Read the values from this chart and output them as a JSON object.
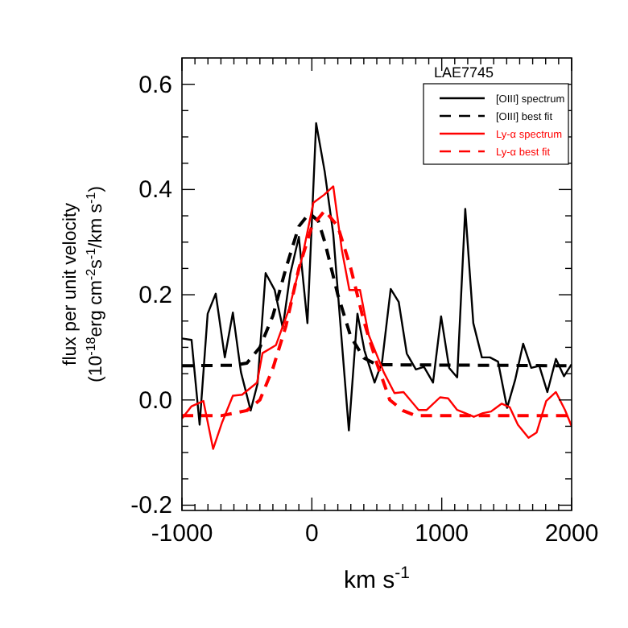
{
  "chart_data": {
    "type": "line",
    "title": "LAE7745",
    "xlabel": "km s$^{-1}$",
    "ylabel": "flux per unit velocity\n(10$^{-18}$erg cm$^{-2}$s$^{-1}$/km s$^{-1}$)",
    "xlim": [
      -1000,
      2000
    ],
    "ylim": [
      -0.21,
      0.65
    ],
    "xticks": [
      -1000,
      {
        "value": -900,
        "label": null
      },
      {
        "value": -800,
        "label": null
      },
      {
        "value": -700,
        "label": null
      },
      {
        "value": -600,
        "label": null
      },
      {
        "value": -500,
        "label": null
      },
      {
        "value": -400,
        "label": null
      },
      {
        "value": -300,
        "label": null
      },
      {
        "value": -200,
        "label": null
      },
      {
        "value": -100,
        "label": null
      },
      0,
      {
        "value": 100,
        "label": null
      },
      {
        "value": 200,
        "label": null
      },
      {
        "value": 300,
        "label": null
      },
      {
        "value": 400,
        "label": null
      },
      {
        "value": 500,
        "label": null
      },
      {
        "value": 600,
        "label": null
      },
      {
        "value": 700,
        "label": null
      },
      {
        "value": 800,
        "label": null
      },
      {
        "value": 900,
        "label": null
      },
      1000,
      {
        "value": 1100,
        "label": null
      },
      {
        "value": 1200,
        "label": null
      },
      {
        "value": 1300,
        "label": null
      },
      {
        "value": 1400,
        "label": null
      },
      {
        "value": 1500,
        "label": null
      },
      {
        "value": 1600,
        "label": null
      },
      {
        "value": 1700,
        "label": null
      },
      {
        "value": 1800,
        "label": null
      },
      {
        "value": 1900,
        "label": null
      },
      2000
    ],
    "yticks": [
      {
        "value": -0.2,
        "label": "-0.2"
      },
      {
        "value": -0.15,
        "label": null
      },
      {
        "value": -0.1,
        "label": null
      },
      {
        "value": -0.05,
        "label": null
      },
      {
        "value": 0,
        "label": "0.0"
      },
      {
        "value": 0.05,
        "label": null
      },
      {
        "value": 0.1,
        "label": null
      },
      {
        "value": 0.15,
        "label": null
      },
      {
        "value": 0.2,
        "label": "0.2"
      },
      {
        "value": 0.25,
        "label": null
      },
      {
        "value": 0.3,
        "label": null
      },
      {
        "value": 0.35,
        "label": null
      },
      {
        "value": 0.4,
        "label": "0.4"
      },
      {
        "value": 0.45,
        "label": null
      },
      {
        "value": 0.5,
        "label": null
      },
      {
        "value": 0.55,
        "label": null
      },
      {
        "value": 0.6,
        "label": "0.6"
      }
    ],
    "legend": "top right",
    "grid": false,
    "series": [
      {
        "name": "[OIII] spectrum",
        "color": "#000000",
        "line_style": "solid",
        "x": [
          -1000,
          -926,
          -864,
          -802,
          -740,
          -670,
          -608,
          -546,
          -471,
          -418,
          -356,
          -286,
          -224,
          -166,
          -100,
          -34,
          33,
          99,
          165,
          223,
          285,
          351,
          405,
          483,
          541,
          607,
          669,
          731,
          801,
          863,
          933,
          995,
          1057,
          1119,
          1181,
          1243,
          1309,
          1371,
          1433,
          1503,
          1565,
          1627,
          1689,
          1751,
          1813,
          1879,
          1941,
          2000
        ],
        "values": [
          0.117,
          0.114,
          -0.047,
          0.164,
          0.202,
          0.081,
          0.166,
          0.053,
          -0.02,
          0.031,
          0.241,
          0.209,
          0.137,
          0.24,
          0.31,
          0.146,
          0.526,
          0.434,
          0.315,
          0.134,
          -0.058,
          0.164,
          0.094,
          0.033,
          0.073,
          0.211,
          0.186,
          0.088,
          0.058,
          0.063,
          0.033,
          0.159,
          0.061,
          0.043,
          0.363,
          0.146,
          0.081,
          0.081,
          0.073,
          -0.015,
          0.038,
          0.107,
          0.061,
          0.065,
          0.015,
          0.078,
          0.045,
          0.068
        ]
      },
      {
        "name": "[OIII] best fit",
        "color": "#000000",
        "line_style": "dashed",
        "x": [
          -1000,
          -600,
          -500,
          -400,
          -300,
          -200,
          -100,
          -20,
          50,
          100,
          200,
          300,
          400,
          500,
          2000
        ],
        "values": [
          0.065,
          0.066,
          0.07,
          0.1,
          0.16,
          0.25,
          0.33,
          0.355,
          0.34,
          0.3,
          0.2,
          0.12,
          0.08,
          0.067,
          0.065
        ]
      },
      {
        "name": "Ly-α spectrum",
        "color": "#ff0000",
        "line_style": "solid",
        "x": [
          -1000,
          -926,
          -835,
          -760,
          -690,
          -608,
          -537,
          -422,
          -380,
          -277,
          -174,
          -71,
          12,
          95,
          165,
          231,
          289,
          371,
          437,
          553,
          636,
          706,
          822,
          884,
          987,
          1049,
          1119,
          1181,
          1247,
          1317,
          1379,
          1462,
          1524,
          1586,
          1668,
          1730,
          1804,
          1879,
          1949,
          2000
        ],
        "values": [
          -0.035,
          -0.012,
          -0.002,
          -0.093,
          -0.042,
          0.008,
          0.01,
          0.033,
          0.089,
          0.104,
          0.174,
          0.275,
          0.375,
          0.39,
          0.406,
          0.285,
          0.209,
          0.209,
          0.124,
          0.053,
          0.013,
          0.015,
          -0.019,
          -0.019,
          0.005,
          0.003,
          -0.019,
          -0.025,
          -0.032,
          -0.025,
          -0.022,
          -0.007,
          -0.014,
          -0.047,
          -0.072,
          -0.062,
          -0.002,
          0.015,
          -0.019,
          -0.05
        ]
      },
      {
        "name": "Ly-α best fit",
        "color": "#ff0000",
        "line_style": "dashed",
        "x": [
          -1000,
          -700,
          -500,
          -400,
          -300,
          -200,
          -100,
          0,
          100,
          200,
          300,
          400,
          500,
          600,
          700,
          800,
          2000
        ],
        "values": [
          -0.03,
          -0.03,
          -0.02,
          0.0,
          0.06,
          0.14,
          0.25,
          0.33,
          0.36,
          0.33,
          0.25,
          0.15,
          0.07,
          0.0,
          -0.02,
          -0.03,
          -0.03
        ]
      }
    ]
  }
}
